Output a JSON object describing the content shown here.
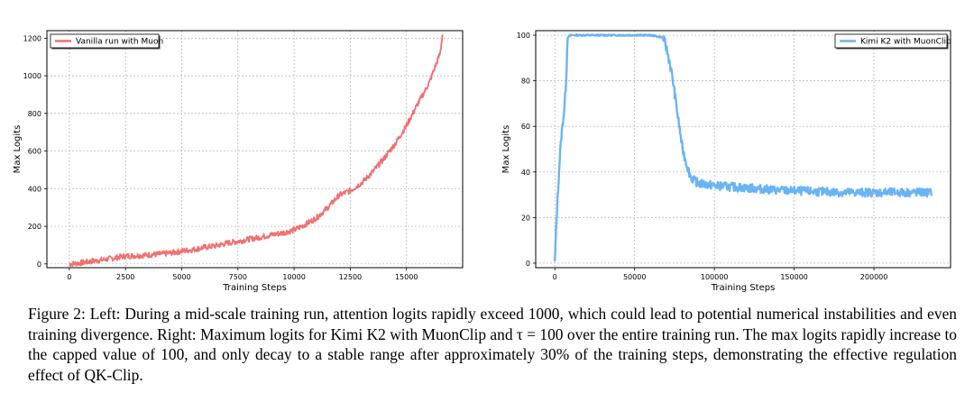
{
  "chart_data": [
    {
      "type": "line",
      "title": "",
      "xlabel": "Training Steps",
      "ylabel": "Max Logits",
      "xlim": [
        -1000,
        17500
      ],
      "ylim": [
        -20,
        1240
      ],
      "xticks": [
        0,
        2500,
        5000,
        7500,
        10000,
        12500,
        15000
      ],
      "xtick_labels": [
        "0",
        "2500",
        "5000",
        "7500",
        "10000",
        "12500",
        "15000"
      ],
      "yticks": [
        0,
        200,
        400,
        600,
        800,
        1000,
        1200
      ],
      "ytick_labels": [
        "0",
        "200",
        "400",
        "600",
        "800",
        "1000",
        "1200"
      ],
      "grid": true,
      "legend_position": "top-left",
      "series": [
        {
          "name": "Vanilla run with Muon",
          "color": "#f07070",
          "x": [
            0,
            500,
            1000,
            1500,
            2000,
            2500,
            3000,
            3500,
            4000,
            4500,
            5000,
            5500,
            6000,
            6500,
            7000,
            7500,
            8000,
            8500,
            9000,
            9500,
            10000,
            10500,
            11000,
            11500,
            12000,
            12500,
            13000,
            13500,
            14000,
            14500,
            15000,
            15500,
            16000,
            16500,
            16600
          ],
          "y": [
            0,
            5,
            15,
            22,
            32,
            42,
            44,
            48,
            52,
            58,
            68,
            76,
            88,
            96,
            110,
            120,
            132,
            142,
            155,
            165,
            180,
            210,
            245,
            300,
            365,
            390,
            430,
            490,
            560,
            640,
            735,
            850,
            960,
            1120,
            1220
          ]
        }
      ]
    },
    {
      "type": "line",
      "title": "",
      "xlabel": "Training Steps",
      "ylabel": "Max Logits",
      "xlim": [
        -12000,
        248000
      ],
      "ylim": [
        -2,
        102
      ],
      "xticks": [
        0,
        50000,
        100000,
        150000,
        200000
      ],
      "xtick_labels": [
        "0",
        "50000",
        "100000",
        "150000",
        "200000"
      ],
      "yticks": [
        0,
        20,
        40,
        60,
        80,
        100
      ],
      "ytick_labels": [
        "0",
        "20",
        "40",
        "60",
        "80",
        "100"
      ],
      "grid": true,
      "legend_position": "top-right",
      "series": [
        {
          "name": "Kimi K2 with MuonClip",
          "color": "#6ab4f5",
          "x": [
            0,
            1000,
            2000,
            3000,
            4000,
            5000,
            6000,
            7000,
            8000,
            10000,
            20000,
            40000,
            60000,
            68000,
            70000,
            72000,
            74000,
            76000,
            78000,
            80000,
            82000,
            84000,
            86000,
            90000,
            100000,
            120000,
            140000,
            160000,
            180000,
            200000,
            220000,
            236000
          ],
          "y": [
            0,
            18,
            32,
            45,
            55,
            62,
            68,
            80,
            99,
            100,
            100,
            100,
            100,
            99,
            94,
            88,
            80,
            70,
            60,
            50,
            45,
            40,
            37,
            35,
            34,
            33,
            32,
            31.5,
            31,
            31,
            31,
            31
          ]
        }
      ]
    }
  ],
  "caption": "Figure 2: Left: During a mid-scale training run, attention logits rapidly exceed 1000, which could lead to potential numerical instabilities and even training divergence. Right: Maximum logits for Kimi K2 with MuonClip and τ = 100 over the entire training run. The max logits rapidly increase to the capped value of 100, and only decay to a stable range after approximately 30% of the training steps, demonstrating the effective regulation effect of QK-Clip."
}
